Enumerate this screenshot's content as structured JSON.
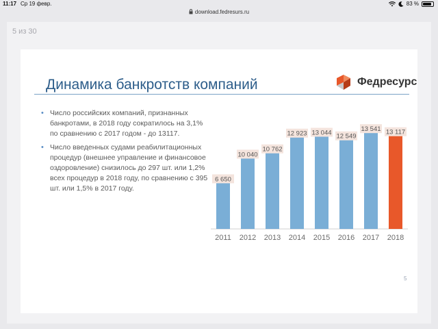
{
  "status_bar": {
    "time": "11:17",
    "date": "Ср 19 февр.",
    "battery": "83 %",
    "battery_level": 0.83
  },
  "browser": {
    "url": "download.fedresurs.ru"
  },
  "viewer": {
    "page_counter": "5 из 30"
  },
  "slide": {
    "title": "Динамика банкротств компаний",
    "logo_text": "Федресурс",
    "slide_number": "5",
    "bullets": [
      "Число российских компаний, признанных банкротами, в 2018 году сократилось на 3,1% по сравнению с 2017 годом - до 13117.",
      "Число введенных судами реабилитационных процедур (внешнее управление и финансовое оздоровление) снизилось до 297 шт. или 1,2% всех процедур в 2018 году, по сравнению с 395 шт. или 1,5% в 2017 году."
    ]
  },
  "colors": {
    "title": "#2d5d8a",
    "bar": "#7aaed6",
    "highlight_bar": "#e8582a",
    "label_bg": "#f4e4dd"
  },
  "chart_data": {
    "type": "bar",
    "categories": [
      "2011",
      "2012",
      "2013",
      "2014",
      "2015",
      "2016",
      "2017",
      "2018"
    ],
    "values": [
      6650,
      10040,
      10762,
      12923,
      13044,
      12549,
      13541,
      13117
    ],
    "data_labels": [
      "6 650",
      "10 040",
      "10 762",
      "12 923",
      "13 044",
      "12 549",
      "13 541",
      "13 117"
    ],
    "highlight_index": 7,
    "ylim": [
      0,
      14500
    ],
    "grid": false,
    "legend": "none"
  }
}
